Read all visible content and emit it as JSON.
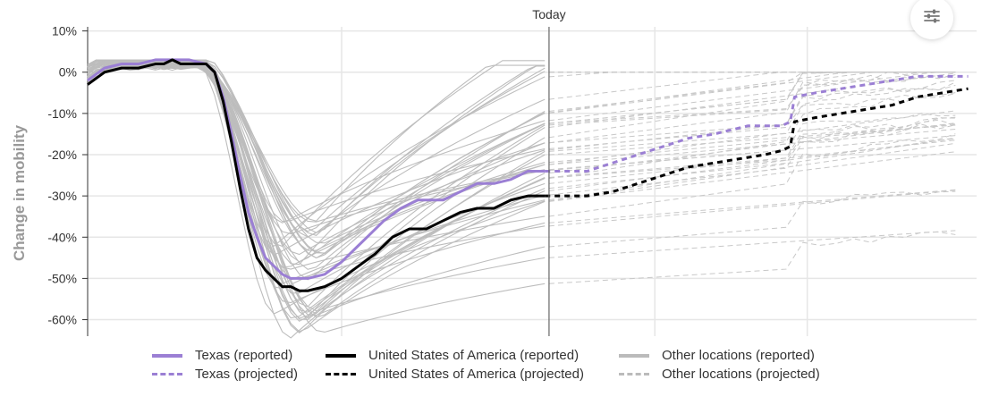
{
  "settings_icon": "sliders-icon",
  "chart_data": {
    "type": "line",
    "ylabel": "Change in mobility",
    "xlabel": "",
    "y_ticks": [
      "10%",
      "0%",
      "-10%",
      "-20%",
      "-30%",
      "-40%",
      "-50%",
      "-60%"
    ],
    "y_tick_values": [
      10,
      0,
      -10,
      -20,
      -30,
      -40,
      -50,
      -60
    ],
    "ylim": [
      -64,
      11
    ],
    "x_range_days": [
      0,
      210
    ],
    "today_label": "Today",
    "today_day": 109,
    "grid": true,
    "legend_position": "bottom",
    "series": [
      {
        "name": "Texas (reported)",
        "style": "solid",
        "color": "#9b7fd4",
        "x": [
          0,
          4,
          8,
          12,
          16,
          20,
          24,
          28,
          30,
          32,
          34,
          36,
          38,
          40,
          42,
          44,
          46,
          48,
          50,
          52,
          56,
          60,
          62,
          64,
          66,
          68,
          70,
          74,
          78,
          80,
          84,
          88,
          92,
          96,
          100,
          104,
          108
        ],
        "y": [
          -2,
          1,
          2,
          2,
          3,
          3,
          3,
          2,
          0,
          -6,
          -15,
          -25,
          -34,
          -40,
          -45,
          -47,
          -49,
          -50,
          -50,
          -50,
          -49,
          -46,
          -44,
          -42,
          -40,
          -38,
          -36,
          -33,
          -31,
          -31,
          -31,
          -29,
          -27,
          -27,
          -26,
          -24,
          -24
        ]
      },
      {
        "name": "Texas (projected)",
        "style": "dashed",
        "color": "#9b7fd4",
        "x": [
          108,
          112,
          118,
          124,
          130,
          136,
          142,
          148,
          152,
          156,
          160,
          164,
          166,
          167,
          172,
          178,
          184,
          190,
          196,
          202,
          208
        ],
        "y": [
          -24,
          -24,
          -24,
          -22,
          -20,
          -18,
          -16,
          -15,
          -14,
          -13,
          -13,
          -13,
          -12,
          -6,
          -5,
          -4,
          -3,
          -2,
          -1,
          -1,
          -1
        ]
      },
      {
        "name": "United States of America (reported)",
        "style": "solid",
        "color": "#000000",
        "x": [
          0,
          4,
          8,
          12,
          16,
          18,
          20,
          22,
          24,
          28,
          30,
          32,
          34,
          36,
          38,
          40,
          42,
          44,
          46,
          48,
          50,
          52,
          56,
          60,
          64,
          68,
          72,
          76,
          80,
          84,
          88,
          92,
          96,
          100,
          104,
          108
        ],
        "y": [
          -3,
          0,
          1,
          1,
          2,
          2,
          3,
          2,
          2,
          2,
          0,
          -7,
          -17,
          -28,
          -38,
          -45,
          -48,
          -50,
          -52,
          -52,
          -53,
          -53,
          -52,
          -50,
          -47,
          -44,
          -40,
          -38,
          -38,
          -36,
          -34,
          -33,
          -33,
          -31,
          -30,
          -30
        ]
      },
      {
        "name": "United States of America (projected)",
        "style": "dashed",
        "color": "#000000",
        "x": [
          108,
          112,
          118,
          124,
          130,
          136,
          142,
          148,
          154,
          160,
          164,
          166,
          167,
          172,
          178,
          184,
          190,
          196,
          202,
          208
        ],
        "y": [
          -30,
          -30,
          -30,
          -29,
          -27,
          -25,
          -23,
          -22,
          -21,
          -20,
          -19,
          -18,
          -12,
          -11,
          -10,
          -9,
          -8,
          -6,
          -5,
          -4
        ]
      }
    ],
    "other_locations": {
      "reported_name": "Other locations (reported)",
      "projected_name": "Other locations (projected)",
      "color": "#bbbbbb"
    }
  },
  "legend": {
    "items": [
      {
        "label": "Texas (reported)",
        "color": "#9b7fd4",
        "style": "solid"
      },
      {
        "label": "United States of America (reported)",
        "color": "#000000",
        "style": "solid"
      },
      {
        "label": "Other locations (reported)",
        "color": "#bbbbbb",
        "style": "solid"
      },
      {
        "label": "Texas (projected)",
        "color": "#9b7fd4",
        "style": "dashed"
      },
      {
        "label": "United States of America (projected)",
        "color": "#000000",
        "style": "dashed"
      },
      {
        "label": "Other locations (projected)",
        "color": "#bbbbbb",
        "style": "dashed"
      }
    ]
  }
}
